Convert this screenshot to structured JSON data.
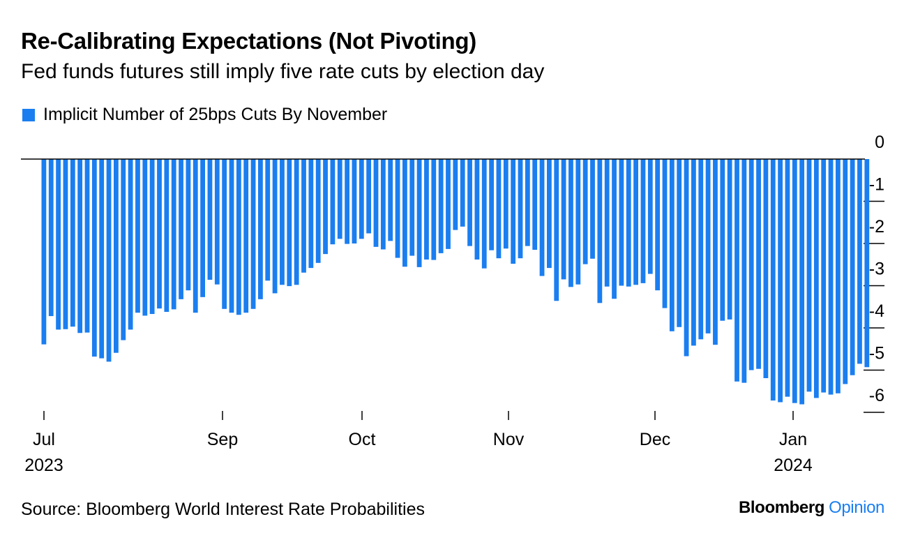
{
  "title": "Re-Calibrating Expectations (Not Pivoting)",
  "subtitle": "Fed funds futures still imply five rate cuts by election day",
  "source": "Source: Bloomberg World Interest Rate Probabilities",
  "brand": {
    "name": "Bloomberg",
    "section": "Opinion"
  },
  "colors": {
    "bar": "#1a7ef0",
    "brand_accent": "#1a7ef0",
    "axis": "#000000"
  },
  "chart_data": {
    "type": "bar",
    "title": "Re-Calibrating Expectations (Not Pivoting)",
    "subtitle": "Fed funds futures still imply five rate cuts by election day",
    "series": [
      {
        "name": "Implicit Number of 25bps Cuts By November",
        "values": [
          -4.39,
          -3.72,
          -4.04,
          -4.03,
          -3.97,
          -4.12,
          -4.11,
          -4.68,
          -4.72,
          -4.8,
          -4.59,
          -4.29,
          -4.04,
          -3.64,
          -3.71,
          -3.67,
          -3.54,
          -3.62,
          -3.56,
          -3.32,
          -3.11,
          -3.64,
          -3.27,
          -2.86,
          -2.97,
          -3.55,
          -3.64,
          -3.69,
          -3.64,
          -3.55,
          -3.32,
          -2.88,
          -3.18,
          -2.98,
          -3.01,
          -2.98,
          -2.69,
          -2.58,
          -2.46,
          -2.25,
          -2.02,
          -1.89,
          -2.01,
          -2.0,
          -1.89,
          -1.76,
          -2.08,
          -2.14,
          -1.94,
          -2.34,
          -2.55,
          -2.29,
          -2.56,
          -2.38,
          -2.39,
          -2.23,
          -2.13,
          -1.68,
          -1.6,
          -2.06,
          -2.38,
          -2.59,
          -2.16,
          -2.35,
          -2.12,
          -2.48,
          -2.35,
          -2.06,
          -2.15,
          -2.77,
          -2.58,
          -3.36,
          -2.85,
          -3.03,
          -2.97,
          -2.49,
          -2.36,
          -3.41,
          -3.02,
          -3.31,
          -3.0,
          -3.02,
          -2.98,
          -2.94,
          -2.72,
          -3.11,
          -3.53,
          -4.08,
          -3.98,
          -4.67,
          -4.42,
          -4.27,
          -4.13,
          -4.4,
          -3.83,
          -3.8,
          -5.27,
          -5.3,
          -5.0,
          -4.97,
          -5.19,
          -5.72,
          -5.76,
          -5.63,
          -5.78,
          -5.81,
          -5.51,
          -5.66,
          -5.53,
          -5.58,
          -5.55,
          -5.33,
          -5.12,
          -4.85,
          -4.93
        ]
      }
    ],
    "x_tick_labels": [
      {
        "label": "Jul",
        "year": "2023"
      },
      {
        "label": "Sep",
        "year": ""
      },
      {
        "label": "Oct",
        "year": ""
      },
      {
        "label": "Nov",
        "year": ""
      },
      {
        "label": "Dec",
        "year": ""
      },
      {
        "label": "Jan",
        "year": "2024"
      }
    ],
    "y_ticks": [
      0,
      -1,
      -2,
      -3,
      -4,
      -5,
      -6
    ],
    "ylim": [
      -6.2,
      0
    ],
    "xlabel": "",
    "ylabel": "",
    "grid": false,
    "legend": "top-left",
    "y_axis_side": "right"
  }
}
